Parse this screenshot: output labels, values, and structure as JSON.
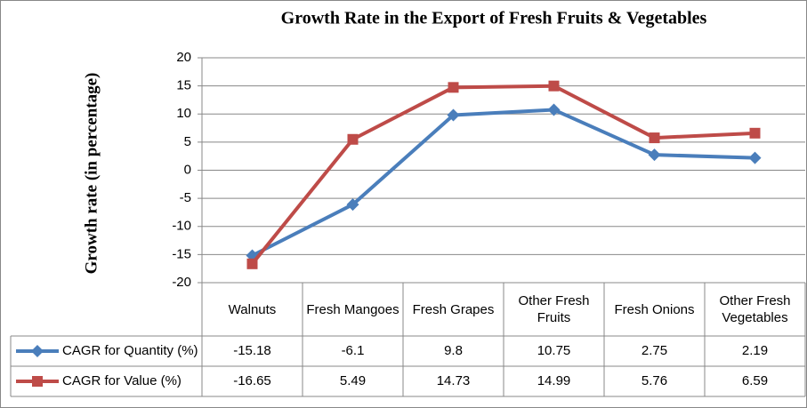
{
  "chart_data": {
    "type": "line",
    "title": "Growth Rate in the Export of Fresh Fruits & Vegetables",
    "y_label": "Growth rate (in percentage)",
    "categories": [
      "Walnuts",
      "Fresh Mangoes",
      "Fresh Grapes",
      "Other Fresh Fruits",
      "Fresh Onions",
      "Other Fresh Vegetables"
    ],
    "series": [
      {
        "name": "CAGR for Quantity (%)",
        "color": "#4a7ebb",
        "marker": "diamond",
        "values": [
          -15.18,
          -6.1,
          9.8,
          10.75,
          2.75,
          2.19
        ]
      },
      {
        "name": "CAGR for Value (%)",
        "color": "#be4b48",
        "marker": "square",
        "values": [
          -16.65,
          5.49,
          14.73,
          14.99,
          5.76,
          6.59
        ]
      }
    ],
    "ylim": [
      -20,
      20
    ],
    "yticks": [
      -20,
      -15,
      -10,
      -5,
      0,
      5,
      10,
      15,
      20
    ],
    "grid": true,
    "data_table": true
  }
}
